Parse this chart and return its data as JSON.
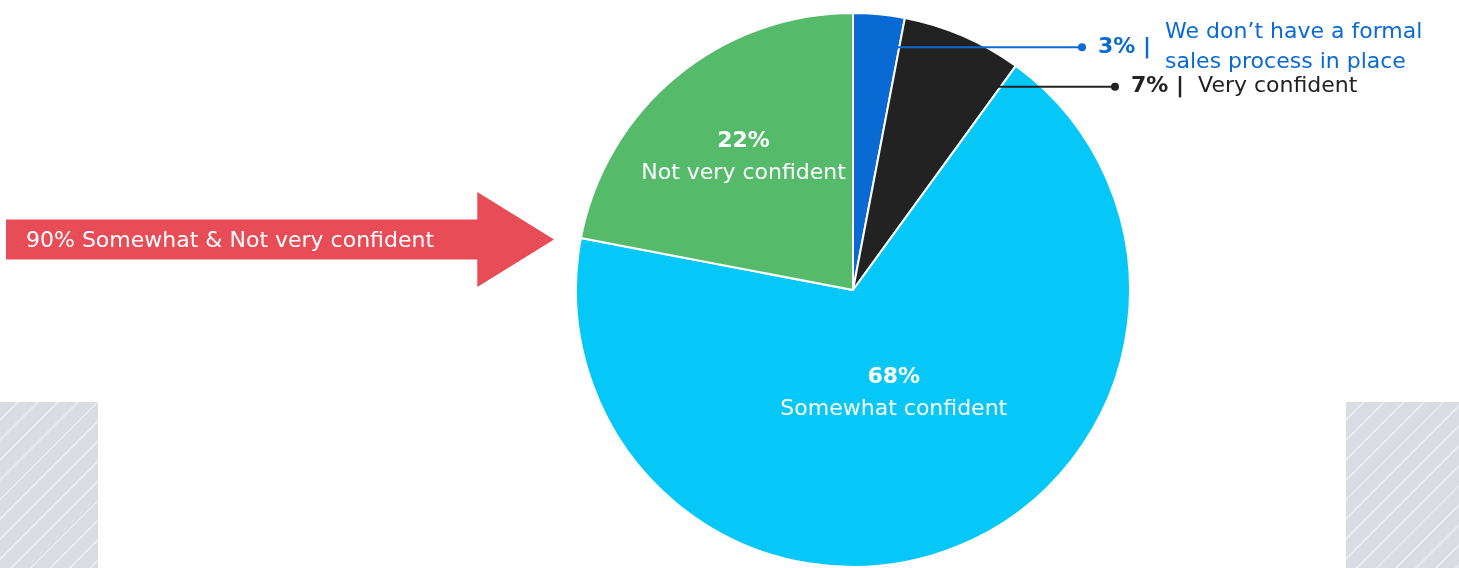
{
  "chart_data": {
    "type": "pie",
    "categories": [
      "We don’t have a formal sales process in place",
      "Very confident",
      "Somewhat confident",
      "Not very confident"
    ],
    "values": [
      3,
      7,
      68,
      22
    ],
    "colors": [
      "#0a6ad4",
      "#222222",
      "#05c8f8",
      "#55bb6b"
    ],
    "value_labels": [
      "3% |",
      "7% |",
      "68%",
      "22%"
    ],
    "legend": false,
    "annotations": [
      "90% Somewhat & Not very confident"
    ]
  }
}
